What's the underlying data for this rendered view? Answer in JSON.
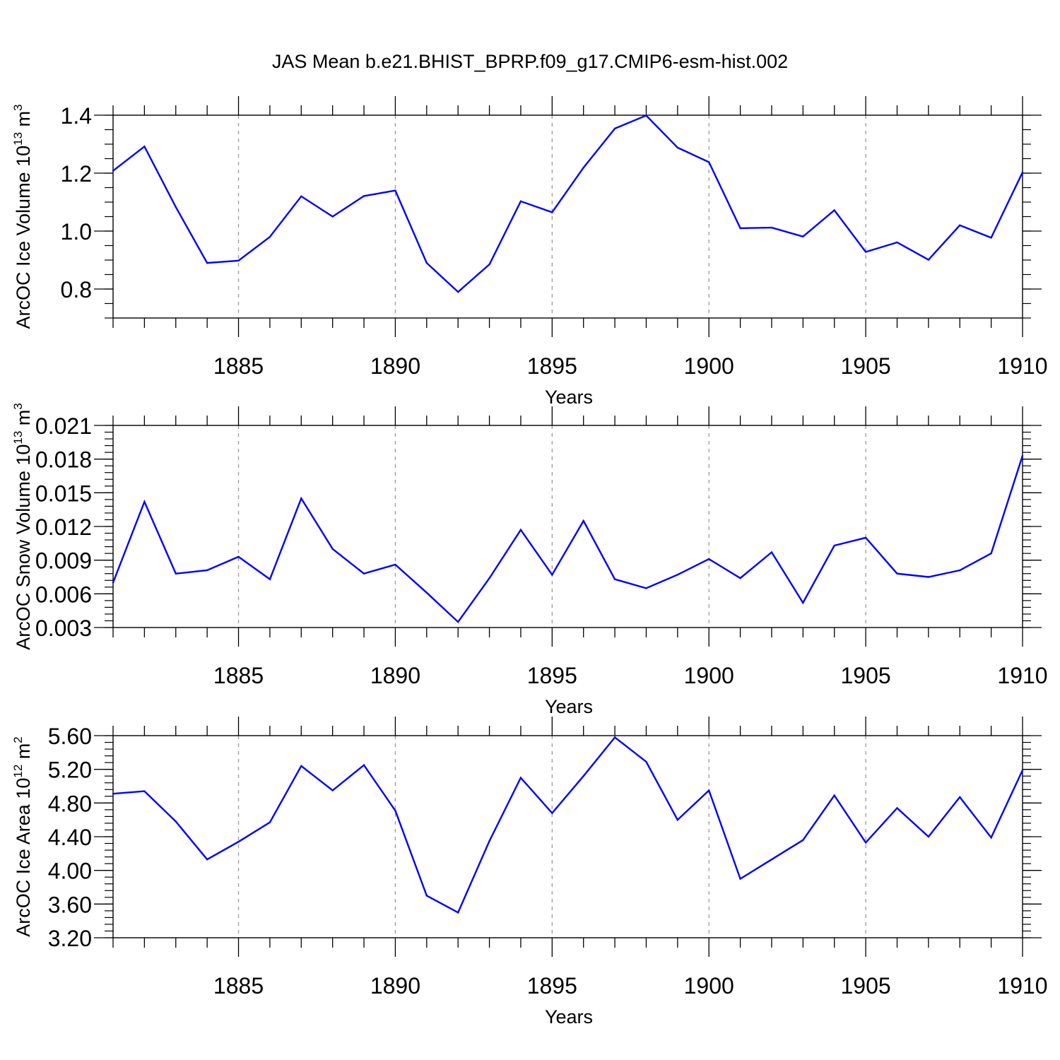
{
  "title": "JAS Mean b.e21.BHIST_BPRP.f09_g17.CMIP6-esm-hist.002",
  "colors": {
    "line": "#0000ff",
    "axis": "#000000",
    "grid": "#999999"
  },
  "chart_data": [
    {
      "type": "line",
      "xlabel": "Years",
      "ylabel": {
        "main": "ArcOC Ice Volume 10",
        "exp": "13",
        "unit": " m",
        "unit_exp": "3"
      },
      "xlim": [
        1881,
        1910
      ],
      "ylim": [
        0.7,
        1.4
      ],
      "x_ticks": [
        1885,
        1890,
        1895,
        1900,
        1905,
        1910
      ],
      "x_tick_labels": [
        "1885",
        "1890",
        "1895",
        "1900",
        "1905",
        "1910"
      ],
      "y_ticks": [
        0.8,
        1.0,
        1.2,
        1.4
      ],
      "y_tick_labels": [
        "0.8",
        "1.0",
        "1.2",
        "1.4"
      ],
      "y_minor_step": 0.05,
      "x": [
        1881,
        1882,
        1883,
        1884,
        1885,
        1886,
        1887,
        1888,
        1889,
        1890,
        1891,
        1892,
        1893,
        1894,
        1895,
        1896,
        1897,
        1898,
        1899,
        1900,
        1901,
        1902,
        1903,
        1904,
        1905,
        1906,
        1907,
        1908,
        1909,
        1910
      ],
      "values": [
        1.208,
        1.292,
        1.083,
        0.89,
        0.898,
        0.98,
        1.12,
        1.05,
        1.121,
        1.14,
        0.89,
        0.79,
        0.885,
        1.103,
        1.065,
        1.219,
        1.354,
        1.399,
        1.288,
        1.238,
        1.01,
        1.012,
        0.981,
        1.072,
        0.928,
        0.961,
        0.901,
        1.02,
        0.977,
        1.203
      ]
    },
    {
      "type": "line",
      "xlabel": "Years",
      "ylabel": {
        "main": "ArcOC Snow Volume 10",
        "exp": "13",
        "unit": " m",
        "unit_exp": "3"
      },
      "xlim": [
        1881,
        1910
      ],
      "ylim": [
        0.003,
        0.021
      ],
      "x_ticks": [
        1885,
        1890,
        1895,
        1900,
        1905,
        1910
      ],
      "x_tick_labels": [
        "1885",
        "1890",
        "1895",
        "1900",
        "1905",
        "1910"
      ],
      "y_ticks": [
        0.003,
        0.006,
        0.009,
        0.012,
        0.015,
        0.018,
        0.021
      ],
      "y_tick_labels": [
        "0.003",
        "0.006",
        "0.009",
        "0.012",
        "0.015",
        "0.018",
        "0.021"
      ],
      "y_minor_step": 0.0006,
      "x": [
        1881,
        1882,
        1883,
        1884,
        1885,
        1886,
        1887,
        1888,
        1889,
        1890,
        1891,
        1892,
        1893,
        1894,
        1895,
        1896,
        1897,
        1898,
        1899,
        1900,
        1901,
        1902,
        1903,
        1904,
        1905,
        1906,
        1907,
        1908,
        1909,
        1910
      ],
      "values": [
        0.007,
        0.0142,
        0.0078,
        0.0081,
        0.0093,
        0.0073,
        0.0145,
        0.01,
        0.0078,
        0.0086,
        0.0061,
        0.0035,
        0.0074,
        0.0117,
        0.0077,
        0.0125,
        0.0073,
        0.0065,
        0.0077,
        0.0091,
        0.0074,
        0.0097,
        0.0052,
        0.0103,
        0.011,
        0.0078,
        0.0075,
        0.0081,
        0.0096,
        0.0183
      ]
    },
    {
      "type": "line",
      "xlabel": "Years",
      "ylabel": {
        "main": "ArcOC Ice Area 10",
        "exp": "12",
        "unit": " m",
        "unit_exp": "2"
      },
      "xlim": [
        1881,
        1910
      ],
      "ylim": [
        3.2,
        5.6
      ],
      "x_ticks": [
        1885,
        1890,
        1895,
        1900,
        1905,
        1910
      ],
      "x_tick_labels": [
        "1885",
        "1890",
        "1895",
        "1900",
        "1905",
        "1910"
      ],
      "y_ticks": [
        3.2,
        3.6,
        4.0,
        4.4,
        4.8,
        5.2,
        5.6
      ],
      "y_tick_labels": [
        "3.20",
        "3.60",
        "4.00",
        "4.40",
        "4.80",
        "5.20",
        "5.60"
      ],
      "y_minor_step": 0.08,
      "x": [
        1881,
        1882,
        1883,
        1884,
        1885,
        1886,
        1887,
        1888,
        1889,
        1890,
        1891,
        1892,
        1893,
        1894,
        1895,
        1896,
        1897,
        1898,
        1899,
        1900,
        1901,
        1902,
        1903,
        1904,
        1905,
        1906,
        1907,
        1908,
        1909,
        1910
      ],
      "values": [
        4.91,
        4.94,
        4.58,
        4.13,
        4.34,
        4.57,
        5.24,
        4.95,
        5.25,
        4.71,
        3.7,
        3.5,
        4.35,
        5.1,
        4.68,
        5.12,
        5.58,
        5.29,
        4.6,
        4.95,
        3.9,
        4.13,
        4.36,
        4.89,
        4.33,
        4.74,
        4.4,
        4.87,
        4.39,
        5.19
      ]
    }
  ]
}
